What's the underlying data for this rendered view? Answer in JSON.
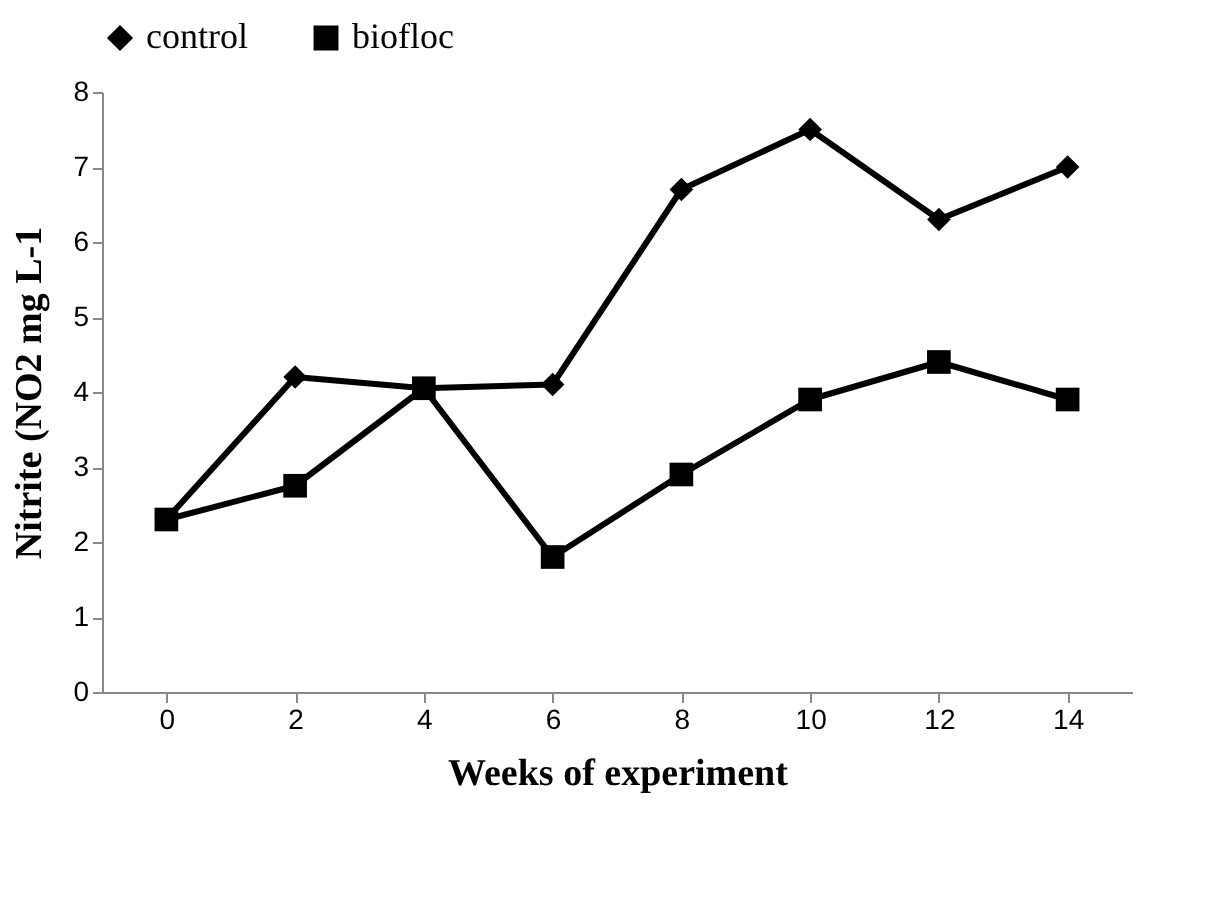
{
  "chart_data": {
    "type": "line",
    "xlabel": "Weeks of experiment",
    "ylabel": "Nitrite (NO2 mg L-1",
    "categories": [
      "0",
      "2",
      "4",
      "6",
      "8",
      "10",
      "12",
      "14"
    ],
    "series": [
      {
        "name": "control",
        "color": "#000000",
        "marker": "diamond",
        "values": [
          2.3,
          4.2,
          4.05,
          4.1,
          6.7,
          7.5,
          6.3,
          7.0
        ]
      },
      {
        "name": "biofloc",
        "color": "#000000",
        "marker": "square",
        "values": [
          2.3,
          2.75,
          4.05,
          1.8,
          2.9,
          3.9,
          4.4,
          3.9
        ]
      }
    ],
    "ylim": [
      0,
      8
    ],
    "yticks": [
      0,
      1,
      2,
      3,
      4,
      5,
      6,
      7,
      8
    ],
    "grid": false,
    "legend": "top",
    "line_style": "solid"
  }
}
